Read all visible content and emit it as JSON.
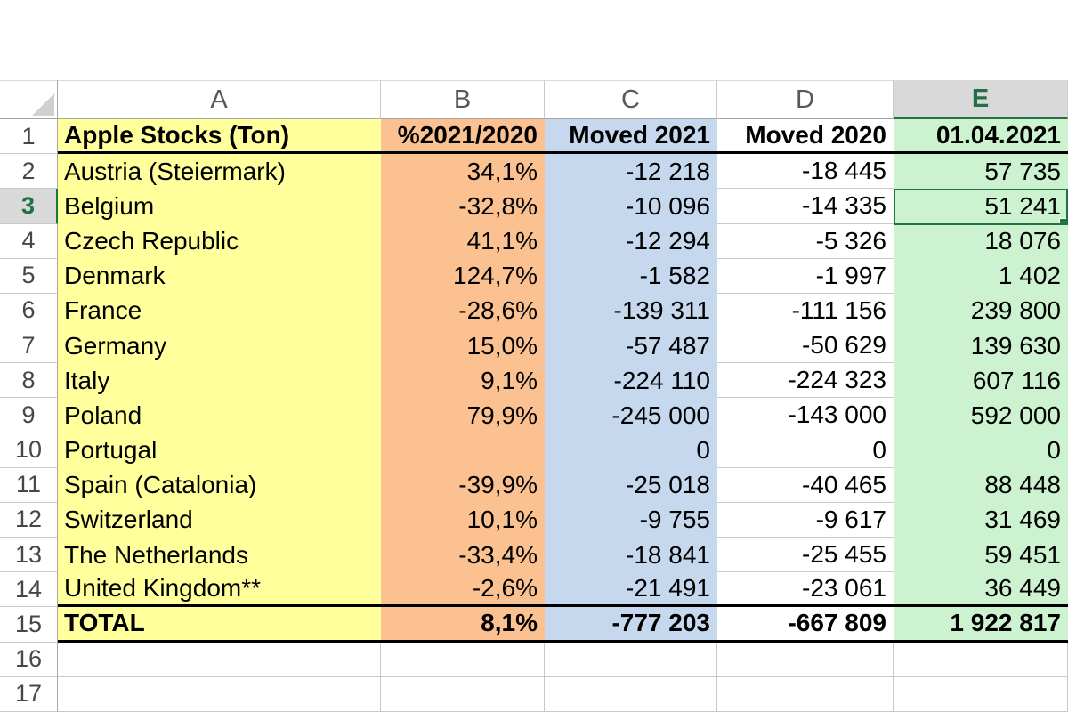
{
  "sheet": {
    "title_cell": "Apple Stocks (Ton)",
    "column_headers": [
      "A",
      "B",
      "C",
      "D",
      "E"
    ],
    "selected": {
      "column": "E",
      "row": 3,
      "cell": "E3",
      "value": "51 241"
    },
    "filled_through_row": 15,
    "thick_bottom_border_rows": [
      1,
      14,
      15
    ],
    "column_fills": [
      "#FFFF9B",
      "#FBC190",
      "#C6D8EE",
      "#FFFFFF",
      "#CCF2CF"
    ],
    "rows": [
      {
        "n": 1,
        "bold": true,
        "cells": [
          "Apple Stocks (Ton)",
          "%2021/2020",
          "Moved 2021",
          "Moved 2020",
          "01.04.2021"
        ]
      },
      {
        "n": 2,
        "bold": false,
        "cells": [
          "Austria (Steiermark)",
          "34,1%",
          "-12 218",
          "-18 445",
          "57 735"
        ]
      },
      {
        "n": 3,
        "bold": false,
        "cells": [
          "Belgium",
          "-32,8%",
          "-10 096",
          "-14 335",
          "51 241"
        ]
      },
      {
        "n": 4,
        "bold": false,
        "cells": [
          "Czech Republic",
          "41,1%",
          "-12 294",
          "-5 326",
          "18 076"
        ]
      },
      {
        "n": 5,
        "bold": false,
        "cells": [
          "Denmark",
          "124,7%",
          "-1 582",
          "-1 997",
          "1 402"
        ]
      },
      {
        "n": 6,
        "bold": false,
        "cells": [
          "France",
          "-28,6%",
          "-139 311",
          "-111 156",
          "239 800"
        ]
      },
      {
        "n": 7,
        "bold": false,
        "cells": [
          "Germany",
          "15,0%",
          "-57 487",
          "-50 629",
          "139 630"
        ]
      },
      {
        "n": 8,
        "bold": false,
        "cells": [
          "Italy",
          "9,1%",
          "-224 110",
          "-224 323",
          "607 116"
        ]
      },
      {
        "n": 9,
        "bold": false,
        "cells": [
          "Poland",
          "79,9%",
          "-245 000",
          "-143 000",
          "592 000"
        ]
      },
      {
        "n": 10,
        "bold": false,
        "cells": [
          "Portugal",
          "",
          "0",
          "0",
          "0"
        ]
      },
      {
        "n": 11,
        "bold": false,
        "cells": [
          "Spain (Catalonia)",
          "-39,9%",
          "-25 018",
          "-40 465",
          "88 448"
        ]
      },
      {
        "n": 12,
        "bold": false,
        "cells": [
          "Switzerland",
          "10,1%",
          "-9 755",
          "-9 617",
          "31 469"
        ]
      },
      {
        "n": 13,
        "bold": false,
        "cells": [
          "The Netherlands",
          "-33,4%",
          "-18 841",
          "-25 455",
          "59 451"
        ]
      },
      {
        "n": 14,
        "bold": false,
        "cells": [
          "United Kingdom**",
          "-2,6%",
          "-21 491",
          "-23 061",
          "36 449"
        ]
      },
      {
        "n": 15,
        "bold": true,
        "cells": [
          "TOTAL",
          "8,1%",
          "-777 203",
          "-667 809",
          "1 922 817"
        ]
      },
      {
        "n": 16,
        "bold": false,
        "cells": [
          "",
          "",
          "",
          "",
          ""
        ]
      },
      {
        "n": 17,
        "bold": false,
        "cells": [
          "",
          "",
          "",
          "",
          ""
        ]
      }
    ]
  },
  "colors": {
    "col_a_fill": "#FFFF9B",
    "col_b_fill": "#FBC190",
    "col_c_fill": "#C6D8EE",
    "col_d_fill": "#FFFFFF",
    "col_e_fill": "#CCF2CF",
    "selection_green": "#217346",
    "selected_header_fill": "#D9D9D9",
    "gridline": "#C9C9C9",
    "header_border": "#A6A6A6",
    "thick_border": "#000000",
    "cell_text": "#000000",
    "header_text": "#585858",
    "select_all_triangle": "#CFCFCF"
  }
}
